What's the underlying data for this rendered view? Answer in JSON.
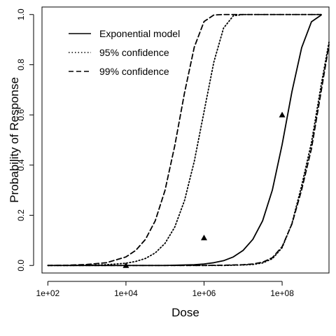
{
  "chart_data": {
    "type": "line",
    "title": "",
    "xlabel": "Dose",
    "ylabel": "Probability of Response",
    "xscale": "log10",
    "xlim_log10": [
      1.85,
      9.2
    ],
    "ylim": [
      -0.03,
      1.03
    ],
    "grid": false,
    "legend_position": "top-left",
    "x_ticks": [
      {
        "value_log10": 2,
        "label": "1e+02"
      },
      {
        "value_log10": 4,
        "label": "1e+04"
      },
      {
        "value_log10": 6,
        "label": "1e+06"
      },
      {
        "value_log10": 8,
        "label": "1e+08"
      }
    ],
    "y_ticks": [
      {
        "value": 0.0,
        "label": "0.0"
      },
      {
        "value": 0.2,
        "label": "0.2"
      },
      {
        "value": 0.4,
        "label": "0.4"
      },
      {
        "value": 0.6,
        "label": "0.6"
      },
      {
        "value": 0.8,
        "label": "0.8"
      },
      {
        "value": 1.0,
        "label": "1.0"
      }
    ],
    "series": [
      {
        "name": "Exponential model",
        "line_style": "solid",
        "x_log10": [
          2.0,
          2.5,
          3.0,
          3.5,
          4.0,
          4.5,
          5.0,
          5.25,
          5.5,
          5.75,
          6.0,
          6.25,
          6.5,
          6.75,
          7.0,
          7.25,
          7.5,
          7.75,
          8.0,
          8.25,
          8.5,
          8.75,
          9.0
        ],
        "y": [
          0.0,
          0.0,
          0.0,
          0.0,
          0.0,
          0.0,
          0.0,
          0.001,
          0.002,
          0.003,
          0.006,
          0.011,
          0.019,
          0.034,
          0.06,
          0.104,
          0.178,
          0.301,
          0.482,
          0.692,
          0.868,
          0.971,
          0.998
        ]
      },
      {
        "name": "95% confidence",
        "line_style": "dotted",
        "x_log10": [
          2.0,
          2.5,
          3.0,
          3.5,
          4.0,
          4.25,
          4.5,
          4.75,
          5.0,
          5.25,
          5.5,
          5.75,
          6.0,
          6.25,
          6.5,
          6.75,
          7.0,
          7.25,
          7.5,
          7.75,
          8.0,
          8.25,
          8.5,
          8.75,
          9.0
        ],
        "y": [
          0.0,
          0.0,
          0.001,
          0.003,
          0.009,
          0.016,
          0.028,
          0.05,
          0.088,
          0.153,
          0.259,
          0.415,
          0.613,
          0.81,
          0.946,
          0.995,
          1.0,
          1.0,
          1.0,
          1.0,
          1.0,
          1.0,
          1.0,
          1.0,
          1.0
        ]
      },
      {
        "name": "99% confidence",
        "line_style": "dashed",
        "x_log10": [
          2.0,
          2.5,
          3.0,
          3.5,
          4.0,
          4.25,
          4.5,
          4.75,
          5.0,
          5.25,
          5.5,
          5.75,
          6.0,
          6.25,
          6.5,
          6.75,
          7.0,
          7.25,
          7.5,
          7.75,
          8.0,
          8.25,
          8.5,
          8.75,
          9.0
        ],
        "y": [
          0.0,
          0.001,
          0.004,
          0.011,
          0.034,
          0.06,
          0.104,
          0.178,
          0.299,
          0.477,
          0.688,
          0.87,
          0.972,
          0.998,
          1.0,
          1.0,
          1.0,
          1.0,
          1.0,
          1.0,
          1.0,
          1.0,
          1.0,
          1.0,
          1.0
        ]
      },
      {
        "name": "",
        "line_style": "dotted",
        "x_log10": [
          2.0,
          3.0,
          4.0,
          5.0,
          5.5,
          6.0,
          6.5,
          7.0,
          7.25,
          7.5,
          7.75,
          8.0,
          8.25,
          8.5,
          8.75,
          9.0,
          9.2
        ],
        "y": [
          0.0,
          0.0,
          0.0,
          0.0,
          0.0,
          0.0,
          0.0,
          0.002,
          0.004,
          0.01,
          0.027,
          0.071,
          0.167,
          0.318,
          0.489,
          0.72,
          0.89
        ]
      },
      {
        "name": "",
        "line_style": "dashed",
        "x_log10": [
          2.0,
          3.0,
          4.0,
          5.0,
          5.5,
          6.0,
          6.5,
          7.0,
          7.25,
          7.5,
          7.75,
          8.0,
          8.25,
          8.5,
          8.75,
          9.0,
          9.2
        ],
        "y": [
          0.0,
          0.0,
          0.0,
          0.0,
          0.0,
          0.0,
          0.001,
          0.003,
          0.006,
          0.013,
          0.031,
          0.075,
          0.165,
          0.302,
          0.465,
          0.695,
          0.88
        ]
      }
    ],
    "observed_points": {
      "marker": "triangle",
      "x_log10": [
        4.0,
        6.0,
        8.0
      ],
      "y": [
        0.0,
        0.11,
        0.6
      ]
    },
    "legend": [
      {
        "label": "Exponential model",
        "line_style": "solid"
      },
      {
        "label": "95% confidence",
        "line_style": "dotted"
      },
      {
        "label": "99% confidence",
        "line_style": "dashed"
      }
    ]
  }
}
